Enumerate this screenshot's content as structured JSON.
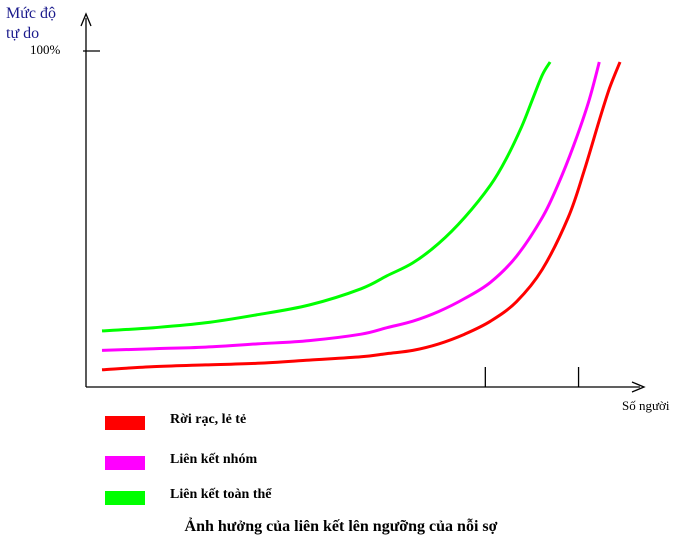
{
  "chart_data": {
    "type": "line",
    "title": "",
    "ylabel_lines": [
      "Mức độ",
      "tự do"
    ],
    "xlabel": "Số người",
    "ytick_label": "100%",
    "ylim": [
      0,
      100
    ],
    "xlim": [
      0,
      100
    ],
    "x_tick_marks": [
      74,
      92
    ],
    "series": [
      {
        "name": "Rời rạc, lẻ tẻ",
        "color": "#ff0000",
        "x": [
          0,
          10,
          20,
          30,
          40,
          50,
          55,
          60,
          65,
          70,
          75,
          80,
          85,
          90,
          93,
          96,
          98,
          100
        ],
        "y": [
          5,
          6,
          6.5,
          7,
          8,
          9,
          10,
          11,
          13,
          16,
          20,
          26,
          36,
          52,
          66,
          82,
          92,
          100
        ]
      },
      {
        "name": "Liên kết nhóm",
        "color": "#ff00ff",
        "x": [
          0,
          10,
          20,
          30,
          40,
          50,
          55,
          60,
          65,
          70,
          75,
          80,
          85,
          88,
          91,
          94,
          96
        ],
        "y": [
          11,
          11.5,
          12,
          13,
          14,
          16,
          18,
          20,
          23,
          27,
          32,
          40,
          52,
          62,
          74,
          88,
          100
        ]
      },
      {
        "name": "Liên kết toàn thể",
        "color": "#00ff00",
        "x": [
          0,
          10,
          20,
          30,
          40,
          50,
          55,
          60,
          65,
          70,
          75,
          78,
          81,
          83,
          85,
          86.5
        ],
        "y": [
          17,
          18,
          19.5,
          22,
          25,
          30,
          34,
          38,
          44,
          52,
          62,
          70,
          80,
          88,
          96,
          100
        ]
      }
    ]
  },
  "caption": "Ảnh hưởng của liên kết lên ngưỡng của nỗi sợ"
}
